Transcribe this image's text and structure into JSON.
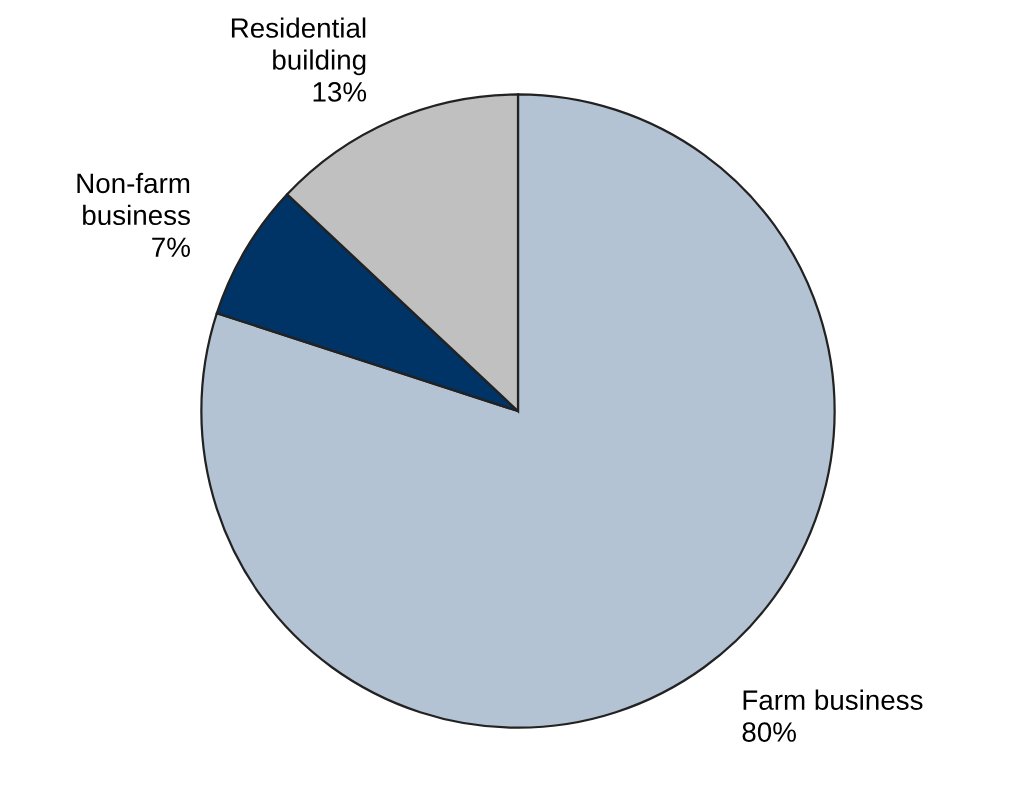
{
  "chart_data": {
    "type": "pie",
    "categories": [
      "Farm business",
      "Non-farm business",
      "Residential building"
    ],
    "values": [
      80,
      7,
      13
    ],
    "colors": [
      "#b3c3d3",
      "#003366",
      "#c0c0c0"
    ],
    "value_labels": [
      "80%",
      "7%",
      "13%"
    ]
  }
}
